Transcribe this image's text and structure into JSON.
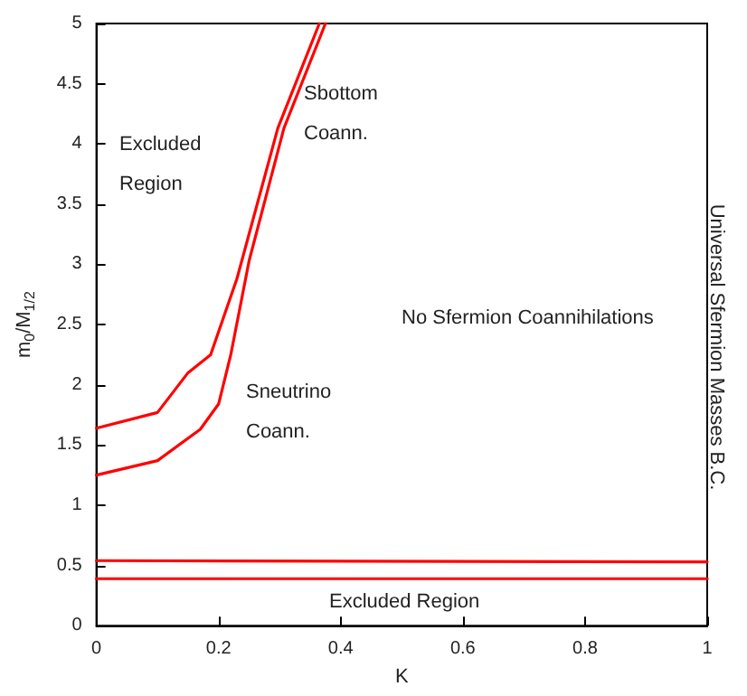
{
  "chart_data": {
    "type": "line",
    "xlabel": "K",
    "ylabel": "m$_{0}$/M$_{1/2}$",
    "xlim": [
      0,
      1
    ],
    "xticks": [
      0,
      0.2,
      0.4,
      0.6,
      0.8,
      1
    ],
    "ylim": [
      0,
      5
    ],
    "yticks": [
      0,
      0.5,
      1,
      1.5,
      2,
      2.5,
      3,
      3.5,
      4,
      4.5,
      5
    ],
    "grid": false,
    "marker": "none",
    "line_style": "solid",
    "series": [
      {
        "color": "#ff0000",
        "x": [
          0,
          0.1,
          0.15,
          0.187,
          0.23,
          0.297,
          0.365
        ],
        "values": [
          1.64,
          1.77,
          2.1,
          2.25,
          2.88,
          4.13,
          5
        ]
      },
      {
        "color": "#ff0000",
        "x": [
          0,
          0.1,
          0.17,
          0.2,
          0.22,
          0.25,
          0.307,
          0.375
        ],
        "values": [
          1.25,
          1.37,
          1.63,
          1.84,
          2.25,
          3.03,
          4.13,
          5
        ]
      },
      {
        "color": "#ff0000",
        "x": [
          0,
          1
        ],
        "values": [
          0.54,
          0.53
        ]
      },
      {
        "color": "#ff0000",
        "x": [
          0,
          1
        ],
        "values": [
          0.39,
          0.39
        ]
      }
    ],
    "annotations": [
      "Excluded Region",
      "Sbottom Coann.",
      "Sneutrino Coann.",
      "No Sfermion Coannihilations",
      "Excluded Region",
      "Universal Sfermion Masses B.C."
    ]
  }
}
